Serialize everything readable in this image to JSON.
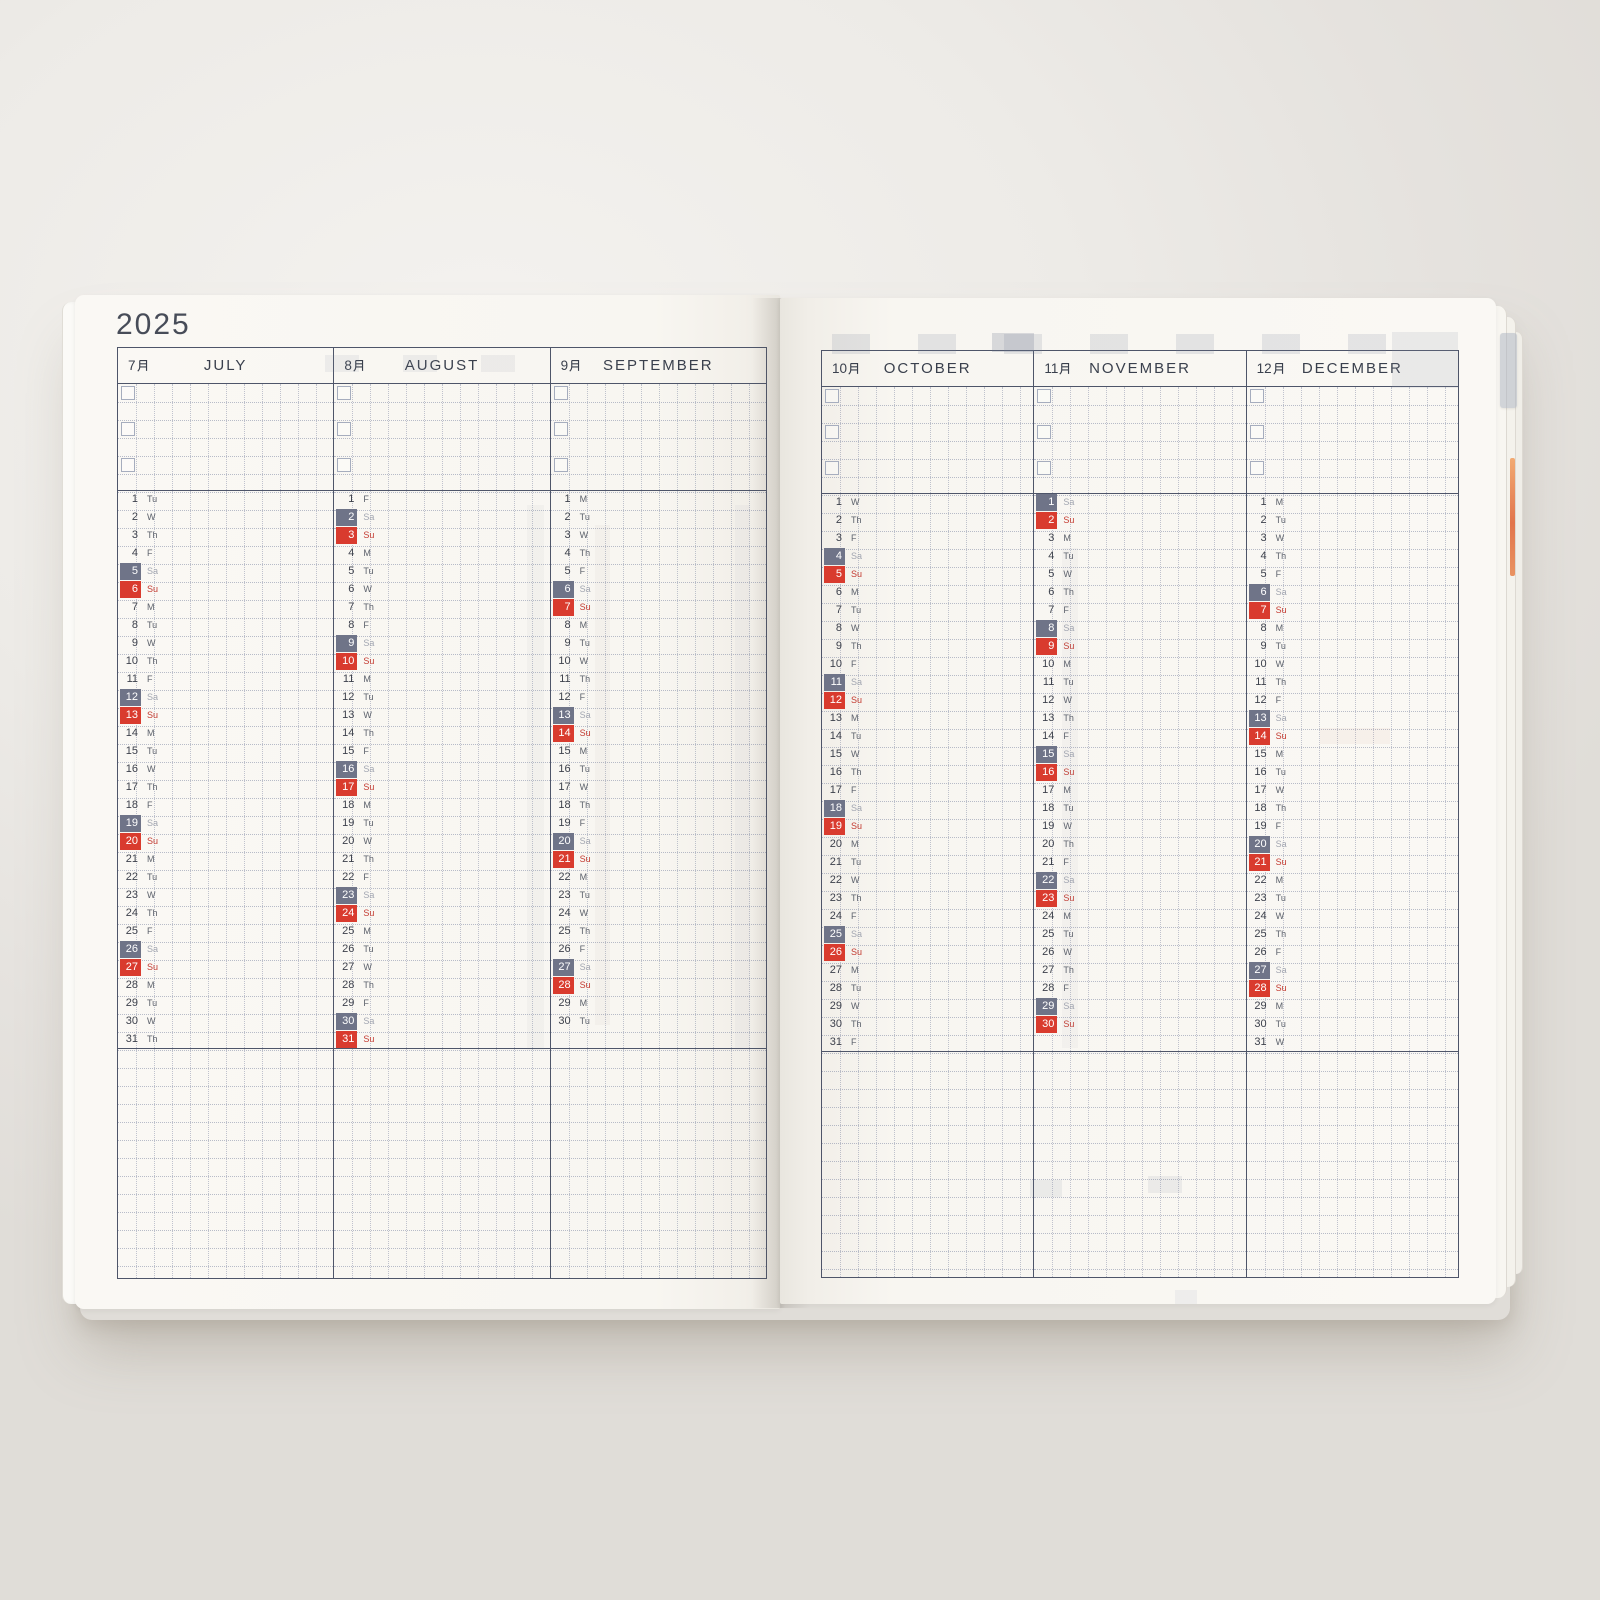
{
  "title": "2025",
  "colors": {
    "saturday_badge": "#6f7488",
    "sunday_badge": "#d93b2e",
    "saturday_text": "#a2a6b1",
    "sunday_text": "#c43b31",
    "weekday_text": "#5c616b",
    "number_text": "#3d414c",
    "table_border": "#4e5569"
  },
  "checkbox_rows_per_month": 3,
  "months": [
    {
      "jp": "7月",
      "en": "JULY",
      "page": "left",
      "days": [
        [
          1,
          "Tu"
        ],
        [
          2,
          "W"
        ],
        [
          3,
          "Th"
        ],
        [
          4,
          "F"
        ],
        [
          5,
          "Sa"
        ],
        [
          6,
          "Su"
        ],
        [
          7,
          "M"
        ],
        [
          8,
          "Tu"
        ],
        [
          9,
          "W"
        ],
        [
          10,
          "Th"
        ],
        [
          11,
          "F"
        ],
        [
          12,
          "Sa"
        ],
        [
          13,
          "Su"
        ],
        [
          14,
          "M"
        ],
        [
          15,
          "Tu"
        ],
        [
          16,
          "W"
        ],
        [
          17,
          "Th"
        ],
        [
          18,
          "F"
        ],
        [
          19,
          "Sa"
        ],
        [
          20,
          "Su"
        ],
        [
          21,
          "M"
        ],
        [
          22,
          "Tu"
        ],
        [
          23,
          "W"
        ],
        [
          24,
          "Th"
        ],
        [
          25,
          "F"
        ],
        [
          26,
          "Sa"
        ],
        [
          27,
          "Su"
        ],
        [
          28,
          "M"
        ],
        [
          29,
          "Tu"
        ],
        [
          30,
          "W"
        ],
        [
          31,
          "Th"
        ]
      ]
    },
    {
      "jp": "8月",
      "en": "AUGUST",
      "page": "left",
      "days": [
        [
          1,
          "F"
        ],
        [
          2,
          "Sa"
        ],
        [
          3,
          "Su"
        ],
        [
          4,
          "M"
        ],
        [
          5,
          "Tu"
        ],
        [
          6,
          "W"
        ],
        [
          7,
          "Th"
        ],
        [
          8,
          "F"
        ],
        [
          9,
          "Sa"
        ],
        [
          10,
          "Su"
        ],
        [
          11,
          "M"
        ],
        [
          12,
          "Tu"
        ],
        [
          13,
          "W"
        ],
        [
          14,
          "Th"
        ],
        [
          15,
          "F"
        ],
        [
          16,
          "Sa"
        ],
        [
          17,
          "Su"
        ],
        [
          18,
          "M"
        ],
        [
          19,
          "Tu"
        ],
        [
          20,
          "W"
        ],
        [
          21,
          "Th"
        ],
        [
          22,
          "F"
        ],
        [
          23,
          "Sa"
        ],
        [
          24,
          "Su"
        ],
        [
          25,
          "M"
        ],
        [
          26,
          "Tu"
        ],
        [
          27,
          "W"
        ],
        [
          28,
          "Th"
        ],
        [
          29,
          "F"
        ],
        [
          30,
          "Sa"
        ],
        [
          31,
          "Su"
        ]
      ]
    },
    {
      "jp": "9月",
      "en": "SEPTEMBER",
      "page": "left",
      "days": [
        [
          1,
          "M"
        ],
        [
          2,
          "Tu"
        ],
        [
          3,
          "W"
        ],
        [
          4,
          "Th"
        ],
        [
          5,
          "F"
        ],
        [
          6,
          "Sa"
        ],
        [
          7,
          "Su"
        ],
        [
          8,
          "M"
        ],
        [
          9,
          "Tu"
        ],
        [
          10,
          "W"
        ],
        [
          11,
          "Th"
        ],
        [
          12,
          "F"
        ],
        [
          13,
          "Sa"
        ],
        [
          14,
          "Su"
        ],
        [
          15,
          "M"
        ],
        [
          16,
          "Tu"
        ],
        [
          17,
          "W"
        ],
        [
          18,
          "Th"
        ],
        [
          19,
          "F"
        ],
        [
          20,
          "Sa"
        ],
        [
          21,
          "Su"
        ],
        [
          22,
          "M"
        ],
        [
          23,
          "Tu"
        ],
        [
          24,
          "W"
        ],
        [
          25,
          "Th"
        ],
        [
          26,
          "F"
        ],
        [
          27,
          "Sa"
        ],
        [
          28,
          "Su"
        ],
        [
          29,
          "M"
        ],
        [
          30,
          "Tu"
        ]
      ]
    },
    {
      "jp": "10月",
      "en": "OCTOBER",
      "page": "right",
      "days": [
        [
          1,
          "W"
        ],
        [
          2,
          "Th"
        ],
        [
          3,
          "F"
        ],
        [
          4,
          "Sa"
        ],
        [
          5,
          "Su"
        ],
        [
          6,
          "M"
        ],
        [
          7,
          "Tu"
        ],
        [
          8,
          "W"
        ],
        [
          9,
          "Th"
        ],
        [
          10,
          "F"
        ],
        [
          11,
          "Sa"
        ],
        [
          12,
          "Su"
        ],
        [
          13,
          "M"
        ],
        [
          14,
          "Tu"
        ],
        [
          15,
          "W"
        ],
        [
          16,
          "Th"
        ],
        [
          17,
          "F"
        ],
        [
          18,
          "Sa"
        ],
        [
          19,
          "Su"
        ],
        [
          20,
          "M"
        ],
        [
          21,
          "Tu"
        ],
        [
          22,
          "W"
        ],
        [
          23,
          "Th"
        ],
        [
          24,
          "F"
        ],
        [
          25,
          "Sa"
        ],
        [
          26,
          "Su"
        ],
        [
          27,
          "M"
        ],
        [
          28,
          "Tu"
        ],
        [
          29,
          "W"
        ],
        [
          30,
          "Th"
        ],
        [
          31,
          "F"
        ]
      ]
    },
    {
      "jp": "11月",
      "en": "NOVEMBER",
      "page": "right",
      "days": [
        [
          1,
          "Sa"
        ],
        [
          2,
          "Su"
        ],
        [
          3,
          "M"
        ],
        [
          4,
          "Tu"
        ],
        [
          5,
          "W"
        ],
        [
          6,
          "Th"
        ],
        [
          7,
          "F"
        ],
        [
          8,
          "Sa"
        ],
        [
          9,
          "Su"
        ],
        [
          10,
          "M"
        ],
        [
          11,
          "Tu"
        ],
        [
          12,
          "W"
        ],
        [
          13,
          "Th"
        ],
        [
          14,
          "F"
        ],
        [
          15,
          "Sa"
        ],
        [
          16,
          "Su"
        ],
        [
          17,
          "M"
        ],
        [
          18,
          "Tu"
        ],
        [
          19,
          "W"
        ],
        [
          20,
          "Th"
        ],
        [
          21,
          "F"
        ],
        [
          22,
          "Sa"
        ],
        [
          23,
          "Su"
        ],
        [
          24,
          "M"
        ],
        [
          25,
          "Tu"
        ],
        [
          26,
          "W"
        ],
        [
          27,
          "Th"
        ],
        [
          28,
          "F"
        ],
        [
          29,
          "Sa"
        ],
        [
          30,
          "Su"
        ]
      ]
    },
    {
      "jp": "12月",
      "en": "DECEMBER",
      "page": "right",
      "days": [
        [
          1,
          "M"
        ],
        [
          2,
          "Tu"
        ],
        [
          3,
          "W"
        ],
        [
          4,
          "Th"
        ],
        [
          5,
          "F"
        ],
        [
          6,
          "Sa"
        ],
        [
          7,
          "Su"
        ],
        [
          8,
          "M"
        ],
        [
          9,
          "Tu"
        ],
        [
          10,
          "W"
        ],
        [
          11,
          "Th"
        ],
        [
          12,
          "F"
        ],
        [
          13,
          "Sa"
        ],
        [
          14,
          "Su"
        ],
        [
          15,
          "M"
        ],
        [
          16,
          "Tu"
        ],
        [
          17,
          "W"
        ],
        [
          18,
          "Th"
        ],
        [
          19,
          "F"
        ],
        [
          20,
          "Sa"
        ],
        [
          21,
          "Su"
        ],
        [
          22,
          "M"
        ],
        [
          23,
          "Tu"
        ],
        [
          24,
          "W"
        ],
        [
          25,
          "Th"
        ],
        [
          26,
          "F"
        ],
        [
          27,
          "Sa"
        ],
        [
          28,
          "Su"
        ],
        [
          29,
          "M"
        ],
        [
          30,
          "Tu"
        ],
        [
          31,
          "W"
        ]
      ]
    }
  ]
}
